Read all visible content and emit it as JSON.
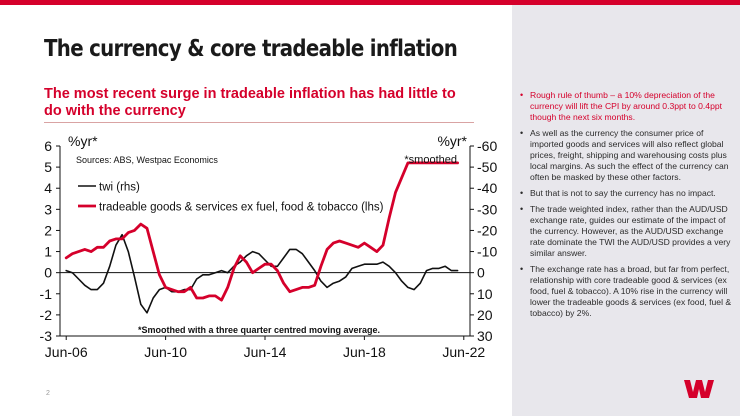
{
  "slide": {
    "title": "The currency & core tradeable inflation",
    "subtitle": "The most recent surge in tradeable inflation has had little to do with the currency",
    "page_number": "2",
    "accent_color": "#d5002b",
    "logo_icon": "westpac-w-logo"
  },
  "bullets": [
    "Rough rule of thumb – a 10% depreciation of the currency will lift the CPI by around 0.3ppt to 0.4ppt though the next six months.",
    "As well as the currency the consumer price of imported goods and services will also reflect global prices, freight, shipping and warehousing costs plus local margins. As such the effect of the currency can often be masked by these other factors.",
    "But that is not to say the currency has no impact.",
    "The trade weighted index, rather than the AUD/USD exchange rate, guides our estimate of the impact of the currency. However, as the AUD/USD exchange rate dominate the TWI the AUD/USD provides a very similar answer.",
    "The exchange rate has a broad, but far from perfect, relationship with core tradeable good & services (ex food, fuel & tobacco). A 10% rise in the currency will lower the tradeable goods & services (ex food, fuel & tobacco) by 2%."
  ],
  "chart_data": {
    "type": "line",
    "left_unit": "%yr*",
    "right_unit": "%yr*",
    "source": "Sources: ABS, Westpac Economics",
    "smoothed_label": "*smoothed",
    "footnote": "*Smoothed with a three quarter centred moving average.",
    "x_ticks": [
      "Jun-06",
      "Jun-10",
      "Jun-14",
      "Jun-18",
      "Jun-22"
    ],
    "x_range": [
      2006.25,
      2022.75
    ],
    "left_axis": {
      "range": [
        -3,
        6
      ],
      "ticks": [
        "6",
        "5",
        "4",
        "3",
        "2",
        "1",
        "0",
        "-1",
        "-2",
        "-3"
      ]
    },
    "right_axis": {
      "range": [
        -60,
        30
      ],
      "inverted": true,
      "ticks": [
        "-60",
        "-50",
        "-40",
        "-30",
        "-20",
        "-10",
        "0",
        "10",
        "20",
        "30"
      ]
    },
    "series": [
      {
        "name": "twi (rhs)",
        "axis": "right",
        "color": "#111111",
        "x": [
          2006.5,
          2006.75,
          2007,
          2007.25,
          2007.5,
          2007.75,
          2008,
          2008.25,
          2008.5,
          2008.75,
          2009,
          2009.25,
          2009.5,
          2009.75,
          2010,
          2010.25,
          2010.5,
          2010.75,
          2011,
          2011.25,
          2011.5,
          2011.75,
          2012,
          2012.25,
          2012.5,
          2012.75,
          2013,
          2013.25,
          2013.5,
          2013.75,
          2014,
          2014.25,
          2014.5,
          2014.75,
          2015,
          2015.25,
          2015.5,
          2015.75,
          2016,
          2016.25,
          2016.5,
          2016.75,
          2017,
          2017.25,
          2017.5,
          2017.75,
          2018,
          2018.25,
          2018.5,
          2018.75,
          2019,
          2019.25,
          2019.5,
          2019.75,
          2020,
          2020.25,
          2020.5,
          2020.75,
          2021,
          2021.25,
          2021.5,
          2021.75,
          2022,
          2022.25
        ],
        "values": [
          -1,
          0,
          3,
          6,
          8,
          8,
          5,
          -3,
          -13,
          -18,
          -10,
          2,
          15,
          19,
          12,
          8,
          7,
          9,
          9,
          8,
          8,
          3,
          1,
          1,
          0,
          -1,
          0,
          -3,
          -5,
          -8,
          -10,
          -9,
          -6,
          -3,
          -3,
          -7,
          -11,
          -11,
          -9,
          -5,
          -1,
          4,
          7,
          5,
          4,
          2,
          -2,
          -3,
          -4,
          -4,
          -4,
          -5,
          -3,
          0,
          4,
          7,
          8,
          5,
          -1,
          -2,
          -2,
          -3,
          -1,
          -1
        ]
      },
      {
        "name": "tradeable goods & services ex fuel, food & tobacco (lhs)",
        "axis": "left",
        "color": "#d5002b",
        "x": [
          2006.5,
          2006.75,
          2007,
          2007.25,
          2007.5,
          2007.75,
          2008,
          2008.25,
          2008.5,
          2008.75,
          2009,
          2009.25,
          2009.5,
          2009.75,
          2010,
          2010.25,
          2010.5,
          2010.75,
          2011,
          2011.25,
          2011.5,
          2011.75,
          2012,
          2012.25,
          2012.5,
          2012.75,
          2013,
          2013.25,
          2013.5,
          2013.75,
          2014,
          2014.25,
          2014.5,
          2014.75,
          2015,
          2015.25,
          2015.5,
          2015.75,
          2016,
          2016.25,
          2016.5,
          2016.75,
          2017,
          2017.25,
          2017.5,
          2017.75,
          2018,
          2018.25,
          2018.5,
          2018.75,
          2019,
          2019.25,
          2019.5,
          2019.75,
          2020,
          2020.25,
          2020.5,
          2020.75,
          2021,
          2021.25,
          2021.5,
          2021.75,
          2022,
          2022.25
        ],
        "values": [
          0.7,
          0.9,
          1.0,
          1.1,
          1.0,
          1.2,
          1.2,
          1.5,
          1.6,
          1.6,
          1.9,
          2.0,
          2.3,
          2.1,
          1.0,
          -0.1,
          -0.7,
          -0.8,
          -0.9,
          -0.9,
          -0.7,
          -1.2,
          -1.2,
          -1.1,
          -1.1,
          -1.3,
          -0.7,
          0.2,
          0.8,
          0.5,
          0.0,
          0.2,
          0.4,
          0.4,
          0.1,
          -0.5,
          -0.9,
          -0.8,
          -0.7,
          -0.7,
          -0.6,
          0.3,
          1.1,
          1.4,
          1.5,
          1.4,
          1.3,
          1.2,
          1.4,
          1.2,
          1.0,
          1.3,
          2.6,
          3.8,
          4.5,
          5.2,
          5.2,
          5.2,
          5.2,
          5.2,
          5.2,
          5.2,
          5.2,
          5.2
        ]
      }
    ]
  }
}
